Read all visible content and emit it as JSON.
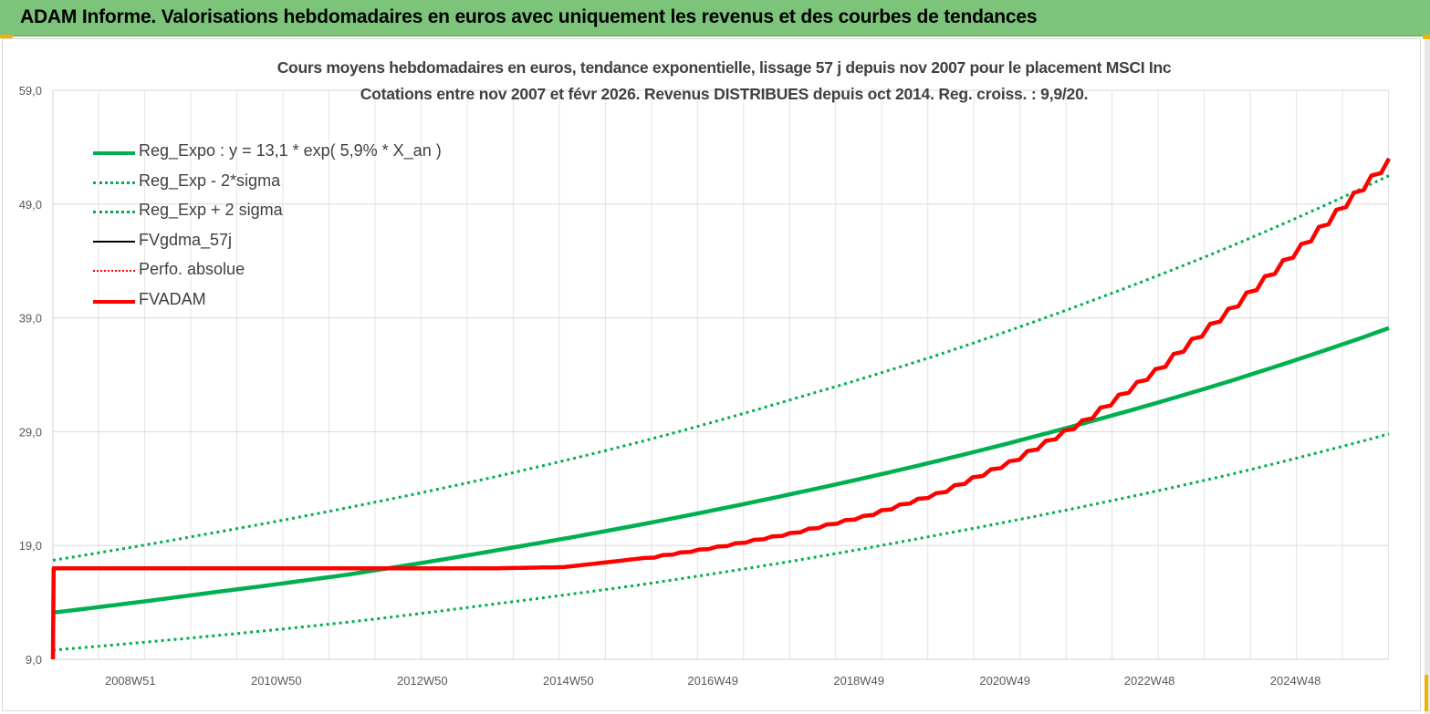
{
  "header": {
    "title": "ADAM Informe. Valorisations hebdomadaires en euros avec uniquement les revenus et des courbes de tendances"
  },
  "colors": {
    "banner": "#7cc47a",
    "trend": "#00b050",
    "fvadam": "#ff0000",
    "fvgdma": "#000000"
  },
  "chart_data": {
    "type": "line",
    "title": "Cours moyens hebdomadaires en euros, tendance exponentielle, lissage 57 j depuis nov 2007 pour le placement MSCI Inc",
    "subtitle": "Cotations entre nov 2007 et févr 2026. Revenus DISTRIBUES depuis oct 2014. Reg. croiss. : 9,9/20.",
    "ylim": [
      9.0,
      59.0
    ],
    "y_ticks": [
      "59,0",
      "49,0",
      "39,0",
      "29,0",
      "19,0",
      "9,0"
    ],
    "y_tick_values": [
      59,
      49,
      39,
      29,
      19,
      9
    ],
    "x_ticks": [
      "2008W51",
      "2010W50",
      "2012W50",
      "2014W50",
      "2016W49",
      "2018W49",
      "2020W49",
      "2022W48",
      "2024W48"
    ],
    "x_tick_years": [
      2008.96,
      2010.96,
      2012.96,
      2014.96,
      2016.94,
      2018.94,
      2020.94,
      2022.92,
      2024.92
    ],
    "x_range": [
      2007.9,
      2026.2
    ],
    "grid": true,
    "legend_position": "top-left",
    "series": [
      {
        "name": "Reg_Expo : y = 13,1 * exp( 5,9% *  X_an )",
        "color": "#00b050",
        "style": "solid-thick",
        "x": [
          2007.9,
          2010,
          2012,
          2014,
          2016,
          2018,
          2020,
          2022,
          2024,
          2026.2
        ],
        "y": [
          13.1,
          14.8,
          16.5,
          18.6,
          20.9,
          23.5,
          26.4,
          29.7,
          33.4,
          38.1
        ]
      },
      {
        "name": "Reg_Exp - 2*sigma",
        "color": "#00b050",
        "style": "dotted",
        "x": [
          2007.9,
          2010,
          2012,
          2014,
          2016,
          2018,
          2020,
          2022,
          2024,
          2026.2
        ],
        "y": [
          9.8,
          11.0,
          12.3,
          13.9,
          15.6,
          17.6,
          19.9,
          22.4,
          25.2,
          28.8
        ]
      },
      {
        "name": "Reg_Exp + 2 sigma",
        "color": "#00b050",
        "style": "dotted",
        "x": [
          2007.9,
          2010,
          2012,
          2014,
          2016,
          2018,
          2020,
          2022,
          2024,
          2026.2
        ],
        "y": [
          17.7,
          20.0,
          22.4,
          25.1,
          28.2,
          31.8,
          35.7,
          40.2,
          45.2,
          51.5
        ]
      },
      {
        "name": "FVgdma_57j",
        "color": "#000000",
        "style": "solid",
        "x": [
          2007.9,
          2007.91,
          2014.0,
          2014.9,
          2016,
          2017,
          2018,
          2019,
          2020,
          2021,
          2022,
          2023,
          2024,
          2025,
          2026.2
        ],
        "y": [
          9.0,
          17.0,
          17.0,
          17.1,
          17.9,
          18.9,
          20.1,
          21.6,
          23.6,
          26.4,
          30.0,
          34.5,
          39.8,
          45.5,
          53.0
        ]
      },
      {
        "name": "Perfo. absolue",
        "color": "#ff0000",
        "style": "dotted",
        "x": [
          2007.9,
          2007.91,
          2014.0,
          2014.9,
          2016,
          2017,
          2018,
          2019,
          2020,
          2021,
          2022,
          2023,
          2024,
          2025,
          2026.2
        ],
        "y": [
          9.0,
          17.0,
          17.0,
          17.1,
          17.9,
          18.9,
          20.1,
          21.6,
          23.6,
          26.4,
          30.0,
          34.5,
          39.8,
          45.5,
          53.0
        ]
      },
      {
        "name": "FVADAM",
        "color": "#ff0000",
        "style": "solid-thick",
        "x": [
          2007.9,
          2007.91,
          2014.0,
          2014.9,
          2016,
          2017,
          2018,
          2019,
          2020,
          2021,
          2022,
          2023,
          2024,
          2025,
          2026.2
        ],
        "y": [
          9.0,
          17.0,
          17.0,
          17.1,
          17.9,
          18.9,
          20.1,
          21.6,
          23.6,
          26.4,
          30.0,
          34.5,
          39.8,
          45.5,
          53.0
        ]
      }
    ]
  }
}
